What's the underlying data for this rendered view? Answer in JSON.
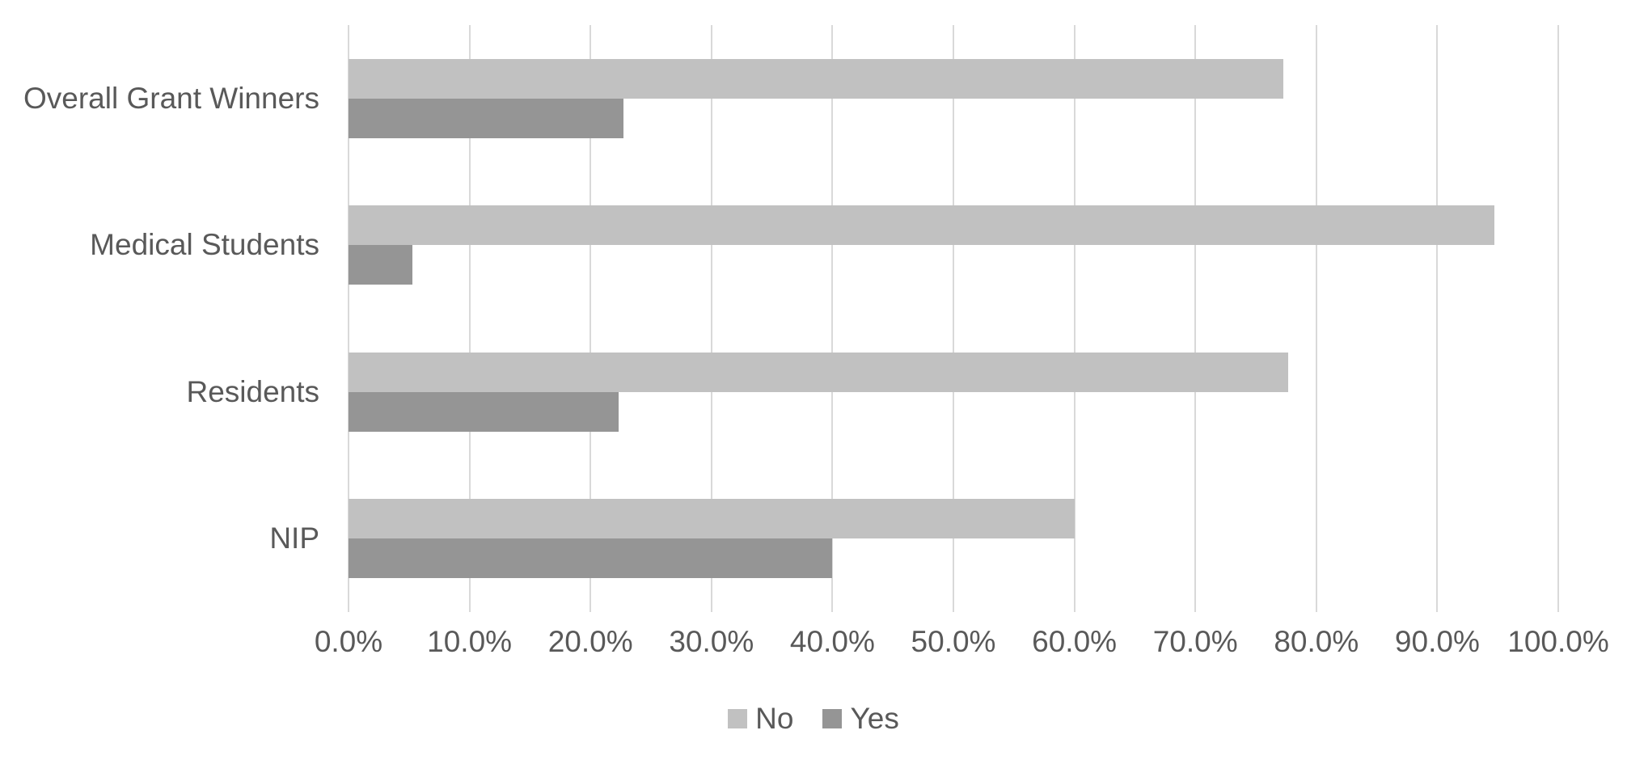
{
  "chart_data": {
    "type": "bar",
    "orientation": "horizontal",
    "title": "",
    "xlabel": "",
    "ylabel": "",
    "grid": true,
    "categories": [
      "Overall Grant Winners",
      "Medical Students",
      "Residents",
      "NIP"
    ],
    "series": [
      {
        "name": "No",
        "color": "#c1c1c1",
        "values": [
          77.3,
          94.7,
          77.7,
          60.0
        ]
      },
      {
        "name": "Yes",
        "color": "#959595",
        "values": [
          22.7,
          5.3,
          22.3,
          40.0
        ]
      }
    ],
    "x_axis": {
      "min": 0,
      "max": 100,
      "tick_step": 10,
      "ticks": [
        {
          "value": 0,
          "label": "0.0%"
        },
        {
          "value": 10,
          "label": "10.0%"
        },
        {
          "value": 20,
          "label": "20.0%"
        },
        {
          "value": 30,
          "label": "30.0%"
        },
        {
          "value": 40,
          "label": "40.0%"
        },
        {
          "value": 50,
          "label": "50.0%"
        },
        {
          "value": 60,
          "label": "60.0%"
        },
        {
          "value": 70,
          "label": "70.0%"
        },
        {
          "value": 80,
          "label": "80.0%"
        },
        {
          "value": 90,
          "label": "90.0%"
        },
        {
          "value": 100,
          "label": "100.0%"
        }
      ]
    },
    "legend": {
      "position": "bottom",
      "entries": [
        "No",
        "Yes"
      ]
    },
    "colors": {
      "gridline": "#d9d9d9",
      "text": "#595959",
      "background": "#ffffff"
    }
  }
}
